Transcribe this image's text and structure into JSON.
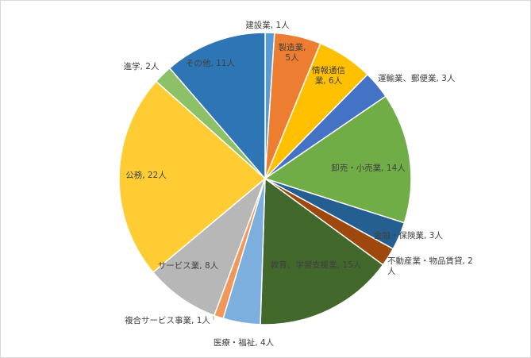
{
  "chart_data": {
    "type": "pie",
    "start_angle_deg": 0,
    "direction": "clockwise",
    "slices": [
      {
        "label": "建設業, 1人",
        "category": "建設業",
        "value": 1,
        "color": "#5B9BD5"
      },
      {
        "label": "製造業,\n5人",
        "category": "製造業",
        "value": 5,
        "color": "#ED7D31"
      },
      {
        "label": "情報通信\n業, 6人",
        "category": "情報通信業",
        "value": 6,
        "color": "#FFC000"
      },
      {
        "label": "運輸業、郵便業, 3人",
        "category": "運輸業、郵便業",
        "value": 3,
        "color": "#4472C4"
      },
      {
        "label": "卸売・小売業, 14人",
        "category": "卸売・小売業",
        "value": 14,
        "color": "#70AD47"
      },
      {
        "label": "金融・保険業, 3人",
        "category": "金融・保険業",
        "value": 3,
        "color": "#255E91"
      },
      {
        "label": "不動産業・物品賃貸, 2\n人",
        "category": "不動産業・物品賃貸",
        "value": 2,
        "color": "#9E480E"
      },
      {
        "label": "教育、学習支援業, 15人",
        "category": "教育、学習支援業",
        "value": 15,
        "color": "#43682B"
      },
      {
        "label": "医療・福祉, 4人",
        "category": "医療・福祉",
        "value": 4,
        "color": "#7CAFDD"
      },
      {
        "label": "複合サービス事業, 1人",
        "category": "複合サービス事業",
        "value": 1,
        "color": "#F1975A"
      },
      {
        "label": "サービス業, 8人",
        "category": "サービス業",
        "value": 8,
        "color": "#B7B7B7"
      },
      {
        "label": "公務, 22人",
        "category": "公務",
        "value": 22,
        "color": "#FFCD33"
      },
      {
        "label": "進学, 2人",
        "category": "進学",
        "value": 2,
        "color": "#8CC168"
      },
      {
        "label": "その他, 11人",
        "category": "その他",
        "value": 11,
        "color": "#2E75B6"
      }
    ]
  }
}
